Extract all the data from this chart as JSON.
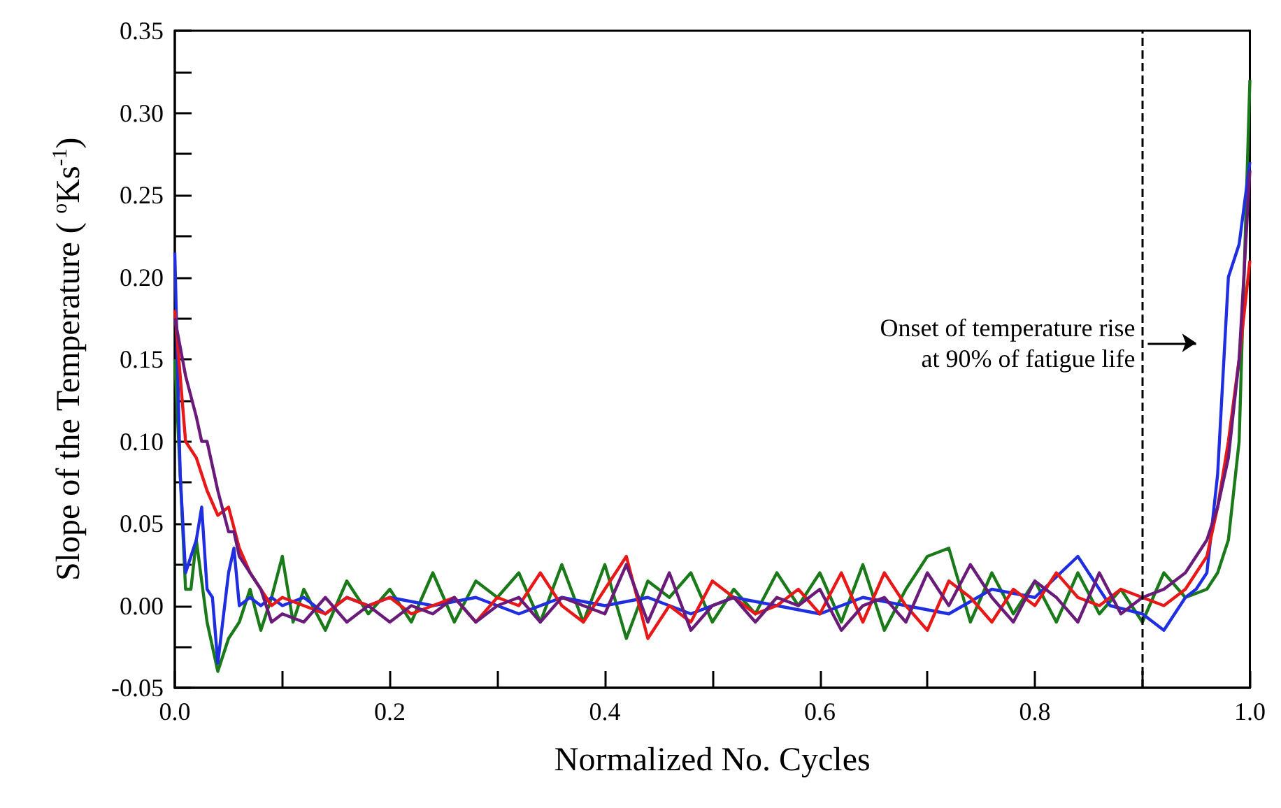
{
  "chart_data": {
    "type": "line",
    "xlabel": "Normalized No. Cycles",
    "ylabel": "Slope of the Temperature ( $^{o}$Ks$^{-1}$)",
    "xlim": [
      0,
      1
    ],
    "ylim": [
      -0.05,
      0.35
    ],
    "xticks": [
      {
        "value": 0,
        "label": "0.0"
      },
      {
        "value": 0.1,
        "label": null
      },
      {
        "value": 0.2,
        "label": "0.2"
      },
      {
        "value": 0.3,
        "label": null
      },
      {
        "value": 0.4,
        "label": "0.4"
      },
      {
        "value": 0.5,
        "label": null
      },
      {
        "value": 0.6,
        "label": "0.6"
      },
      {
        "value": 0.7,
        "label": null
      },
      {
        "value": 0.8,
        "label": "0.8"
      },
      {
        "value": 0.9,
        "label": null
      },
      {
        "value": 1,
        "label": "1.0"
      }
    ],
    "yticks": [
      {
        "value": -0.05,
        "label": "-0.05"
      },
      {
        "value": -0.025,
        "label": null
      },
      {
        "value": 0,
        "label": "0.00"
      },
      {
        "value": 0.025,
        "label": null
      },
      {
        "value": 0.05,
        "label": "0.05"
      },
      {
        "value": 0.075,
        "label": null
      },
      {
        "value": 0.1,
        "label": "0.10"
      },
      {
        "value": 0.125,
        "label": null
      },
      {
        "value": 0.15,
        "label": "0.15"
      },
      {
        "value": 0.175,
        "label": null
      },
      {
        "value": 0.2,
        "label": "0.20"
      },
      {
        "value": 0.225,
        "label": null
      },
      {
        "value": 0.25,
        "label": "0.25"
      },
      {
        "value": 0.275,
        "label": null
      },
      {
        "value": 0.3,
        "label": "0.30"
      },
      {
        "value": 0.325,
        "label": null
      },
      {
        "value": 0.35,
        "label": "0.35"
      }
    ],
    "grid": false,
    "marker": "none",
    "line_style": "solid",
    "series": [
      {
        "color": "#1a7a1a",
        "x": [
          0,
          0.005,
          0.01,
          0.015,
          0.02,
          0.03,
          0.04,
          0.05,
          0.06,
          0.07,
          0.08,
          0.09,
          0.1,
          0.11,
          0.12,
          0.14,
          0.16,
          0.18,
          0.2,
          0.22,
          0.24,
          0.26,
          0.28,
          0.3,
          0.32,
          0.34,
          0.36,
          0.38,
          0.4,
          0.42,
          0.44,
          0.46,
          0.48,
          0.5,
          0.52,
          0.54,
          0.56,
          0.58,
          0.6,
          0.62,
          0.64,
          0.66,
          0.68,
          0.7,
          0.72,
          0.74,
          0.76,
          0.78,
          0.8,
          0.82,
          0.84,
          0.86,
          0.88,
          0.9,
          0.92,
          0.94,
          0.96,
          0.97,
          0.98,
          0.99,
          1.0
        ],
        "values": [
          0.15,
          0.08,
          0.01,
          0.01,
          0.04,
          -0.01,
          -0.04,
          -0.02,
          -0.01,
          0.01,
          -0.015,
          0.005,
          0.03,
          -0.01,
          0.01,
          -0.015,
          0.015,
          -0.005,
          0.01,
          -0.01,
          0.02,
          -0.01,
          0.015,
          0.005,
          0.02,
          -0.01,
          0.025,
          -0.01,
          0.025,
          -0.02,
          0.015,
          0.005,
          0.02,
          -0.01,
          0.01,
          -0.005,
          0.02,
          0.0,
          0.02,
          -0.01,
          0.025,
          -0.015,
          0.01,
          0.03,
          0.035,
          -0.01,
          0.02,
          -0.005,
          0.015,
          -0.01,
          0.02,
          -0.005,
          0.01,
          -0.01,
          0.02,
          0.005,
          0.01,
          0.02,
          0.04,
          0.1,
          0.32
        ]
      },
      {
        "color": "#1f2ee0",
        "x": [
          0,
          0.005,
          0.01,
          0.02,
          0.025,
          0.03,
          0.035,
          0.04,
          0.05,
          0.055,
          0.06,
          0.07,
          0.08,
          0.09,
          0.1,
          0.12,
          0.14,
          0.16,
          0.18,
          0.2,
          0.24,
          0.28,
          0.32,
          0.36,
          0.4,
          0.44,
          0.48,
          0.52,
          0.56,
          0.6,
          0.64,
          0.68,
          0.72,
          0.76,
          0.8,
          0.84,
          0.87,
          0.9,
          0.92,
          0.94,
          0.95,
          0.96,
          0.97,
          0.98,
          0.99,
          1.0
        ],
        "values": [
          0.215,
          0.08,
          0.02,
          0.04,
          0.06,
          0.01,
          0.005,
          -0.035,
          0.02,
          0.035,
          0.0,
          0.005,
          0.0,
          0.005,
          0.0,
          0.005,
          -0.005,
          0.005,
          0.0,
          0.005,
          0.0,
          0.005,
          -0.005,
          0.005,
          0.0,
          0.005,
          -0.005,
          0.005,
          0.0,
          -0.005,
          0.005,
          0.0,
          -0.005,
          0.01,
          0.005,
          0.03,
          0.0,
          -0.005,
          -0.015,
          0.005,
          0.01,
          0.02,
          0.08,
          0.2,
          0.22,
          0.27
        ]
      },
      {
        "color": "#e81818",
        "x": [
          0,
          0.01,
          0.02,
          0.03,
          0.04,
          0.05,
          0.06,
          0.07,
          0.08,
          0.09,
          0.1,
          0.12,
          0.14,
          0.16,
          0.18,
          0.2,
          0.22,
          0.24,
          0.26,
          0.28,
          0.3,
          0.32,
          0.34,
          0.36,
          0.38,
          0.4,
          0.42,
          0.44,
          0.46,
          0.48,
          0.5,
          0.52,
          0.54,
          0.56,
          0.58,
          0.6,
          0.62,
          0.64,
          0.66,
          0.68,
          0.7,
          0.72,
          0.74,
          0.76,
          0.78,
          0.8,
          0.82,
          0.84,
          0.86,
          0.88,
          0.9,
          0.92,
          0.94,
          0.96,
          0.97,
          0.98,
          0.99,
          1.0
        ],
        "values": [
          0.18,
          0.1,
          0.09,
          0.07,
          0.055,
          0.06,
          0.035,
          0.02,
          0.01,
          0.0,
          0.005,
          0.0,
          -0.005,
          0.005,
          0.0,
          0.005,
          -0.005,
          0.0,
          0.005,
          -0.01,
          0.005,
          0.0,
          0.02,
          0.0,
          -0.01,
          0.01,
          0.03,
          -0.02,
          0.0,
          -0.01,
          0.015,
          0.005,
          -0.005,
          0.0,
          0.01,
          -0.005,
          0.02,
          -0.01,
          0.02,
          0.0,
          -0.015,
          0.015,
          0.005,
          -0.01,
          0.01,
          0.0,
          0.02,
          0.005,
          0.0,
          0.01,
          0.005,
          0.0,
          0.01,
          0.03,
          0.06,
          0.1,
          0.15,
          0.21
        ]
      },
      {
        "color": "#6a1b7a",
        "x": [
          0,
          0.01,
          0.02,
          0.025,
          0.03,
          0.04,
          0.05,
          0.055,
          0.06,
          0.07,
          0.08,
          0.09,
          0.1,
          0.12,
          0.14,
          0.16,
          0.18,
          0.2,
          0.22,
          0.24,
          0.26,
          0.28,
          0.3,
          0.32,
          0.34,
          0.36,
          0.38,
          0.4,
          0.42,
          0.44,
          0.46,
          0.48,
          0.5,
          0.52,
          0.54,
          0.56,
          0.58,
          0.6,
          0.62,
          0.64,
          0.66,
          0.68,
          0.7,
          0.72,
          0.74,
          0.76,
          0.78,
          0.8,
          0.82,
          0.84,
          0.86,
          0.88,
          0.9,
          0.92,
          0.94,
          0.96,
          0.97,
          0.98,
          0.99,
          1.0
        ],
        "values": [
          0.175,
          0.14,
          0.115,
          0.1,
          0.1,
          0.07,
          0.045,
          0.045,
          0.03,
          0.02,
          0.01,
          -0.01,
          -0.005,
          -0.01,
          0.005,
          -0.01,
          0.0,
          -0.01,
          0.0,
          -0.005,
          0.005,
          -0.01,
          0.0,
          0.005,
          -0.01,
          0.005,
          0.0,
          -0.005,
          0.025,
          -0.01,
          0.02,
          -0.015,
          0.0,
          0.005,
          -0.01,
          0.005,
          0.0,
          0.01,
          -0.015,
          0.0,
          0.005,
          -0.01,
          0.02,
          0.0,
          0.025,
          0.005,
          -0.01,
          0.015,
          0.005,
          -0.01,
          0.02,
          -0.005,
          0.005,
          0.01,
          0.02,
          0.04,
          0.06,
          0.09,
          0.15,
          0.265
        ]
      }
    ],
    "ref_lines": [
      {
        "axis": "x",
        "value": 0.9,
        "color": "#000000",
        "line_style": "dashed"
      }
    ],
    "annotations": [
      {
        "text": "Onset of temperature rise\n at 90% of fatigue life",
        "x": 0.9,
        "y": 0.16
      }
    ]
  }
}
